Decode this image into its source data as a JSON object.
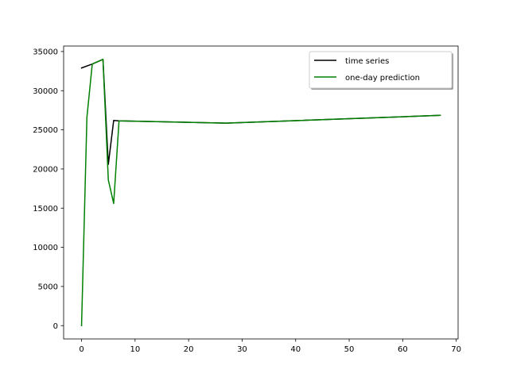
{
  "chart_data": {
    "type": "line",
    "title": "",
    "xlabel": "",
    "ylabel": "",
    "xlim": [
      -3.35,
      70.35
    ],
    "ylim": [
      -1700,
      35700
    ],
    "x_ticks": [
      0,
      10,
      20,
      30,
      40,
      50,
      60,
      70
    ],
    "y_ticks": [
      0,
      5000,
      10000,
      15000,
      20000,
      25000,
      30000,
      35000
    ],
    "x_tick_labels": [
      "0",
      "10",
      "20",
      "30",
      "40",
      "50",
      "60",
      "70"
    ],
    "y_tick_labels": [
      "0",
      "5000",
      "10000",
      "15000",
      "20000",
      "25000",
      "30000",
      "35000"
    ],
    "grid": false,
    "legend_position": "top-right",
    "series": [
      {
        "name": "time series",
        "color": "#000000",
        "x": [
          0,
          2,
          4,
          5,
          6,
          7,
          27,
          67
        ],
        "y": [
          32900,
          33400,
          34000,
          20600,
          26200,
          26150,
          25850,
          26850
        ]
      },
      {
        "name": "one-day prediction",
        "color": "#008000",
        "x": [
          0,
          1,
          2,
          4,
          5,
          6,
          7,
          27,
          67
        ],
        "y": [
          0,
          26600,
          33400,
          34000,
          18600,
          15600,
          26150,
          25850,
          26850
        ]
      }
    ]
  }
}
